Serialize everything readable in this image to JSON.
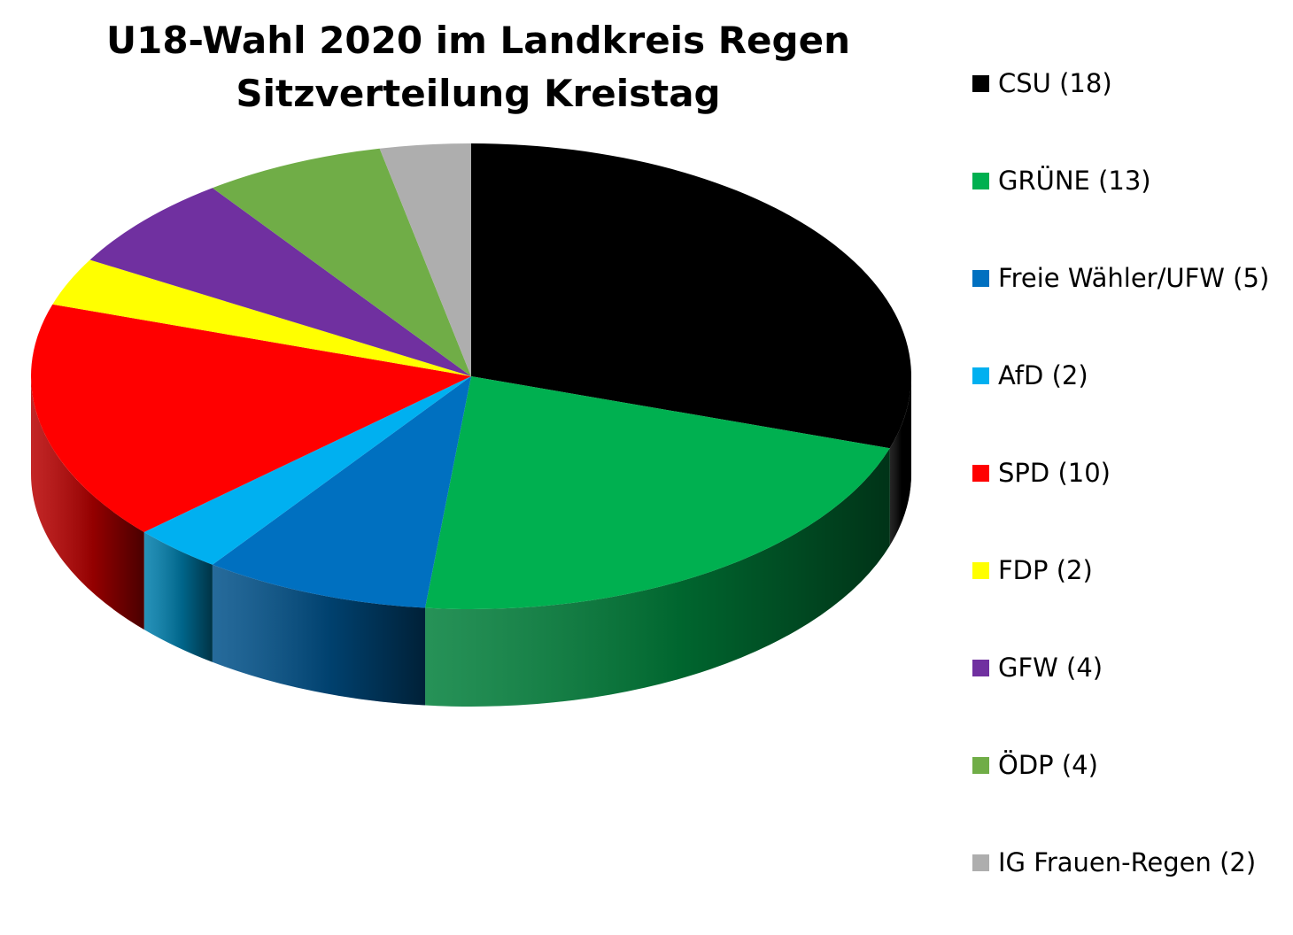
{
  "chart_data": {
    "type": "pie",
    "variant": "3d",
    "title": "U18-Wahl 2020 im Landkreis Regen",
    "subtitle": "Sitzverteilung Kreistag",
    "legend_position": "right",
    "slices": [
      {
        "label": "CSU (18)",
        "value": 18,
        "color": "#000000"
      },
      {
        "label": "GRÜNE (13)",
        "value": 13,
        "color": "#00b050"
      },
      {
        "label": "Freie Wähler/UFW (5)",
        "value": 5,
        "color": "#0070c0"
      },
      {
        "label": "AfD (2)",
        "value": 2,
        "color": "#00b0f0"
      },
      {
        "label": "SPD (10)",
        "value": 10,
        "color": "#ff0000"
      },
      {
        "label": "FDP (2)",
        "value": 2,
        "color": "#ffff00"
      },
      {
        "label": "GFW (4)",
        "value": 4,
        "color": "#7030a0"
      },
      {
        "label": "ÖDP (4)",
        "value": 4,
        "color": "#70ad47"
      },
      {
        "label": "IG Frauen-Regen (2)",
        "value": 2,
        "color": "#aeaeae"
      }
    ]
  }
}
